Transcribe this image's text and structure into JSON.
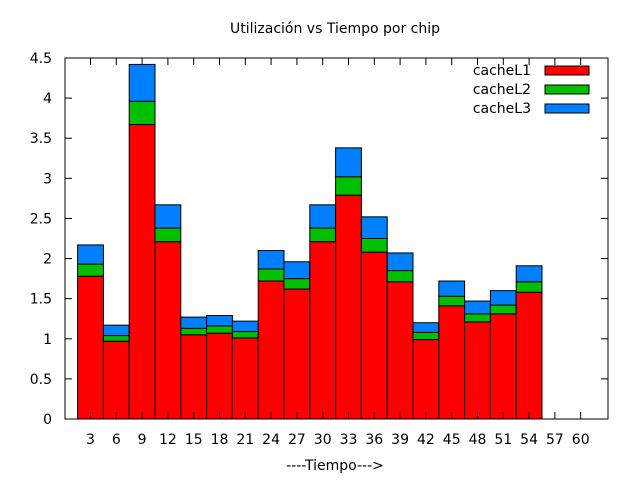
{
  "chart_data": {
    "type": "bar",
    "stacked": true,
    "title": "Utilización vs Tiempo por chip",
    "xlabel": "----Tiempo--->",
    "ylabel": "",
    "ylim": [
      0,
      4.5
    ],
    "y_ticks": [
      "0",
      "0.5",
      "1",
      "1.5",
      "2",
      "2.5",
      "3",
      "3.5",
      "4",
      "4.5"
    ],
    "categories": [
      "3",
      "6",
      "9",
      "12",
      "15",
      "18",
      "21",
      "24",
      "27",
      "30",
      "33",
      "36",
      "39",
      "42",
      "45",
      "48",
      "51",
      "54",
      "57",
      "60"
    ],
    "legend_position": "top-right",
    "grid": false,
    "series": [
      {
        "name": "cacheL1",
        "color": "#ff0000",
        "values": [
          1.78,
          0.97,
          3.67,
          2.21,
          1.05,
          1.07,
          1.01,
          1.72,
          1.62,
          2.21,
          2.79,
          2.08,
          1.71,
          0.99,
          1.41,
          1.21,
          1.31,
          1.58,
          0,
          0
        ]
      },
      {
        "name": "cacheL2",
        "color": "#00c000",
        "values": [
          0.15,
          0.07,
          0.29,
          0.17,
          0.08,
          0.09,
          0.08,
          0.15,
          0.13,
          0.17,
          0.23,
          0.17,
          0.14,
          0.09,
          0.12,
          0.1,
          0.11,
          0.13,
          0,
          0
        ]
      },
      {
        "name": "cacheL3",
        "color": "#0080ff",
        "values": [
          0.24,
          0.13,
          0.46,
          0.29,
          0.14,
          0.13,
          0.13,
          0.23,
          0.21,
          0.29,
          0.36,
          0.27,
          0.22,
          0.12,
          0.19,
          0.16,
          0.18,
          0.2,
          0,
          0
        ]
      }
    ]
  }
}
